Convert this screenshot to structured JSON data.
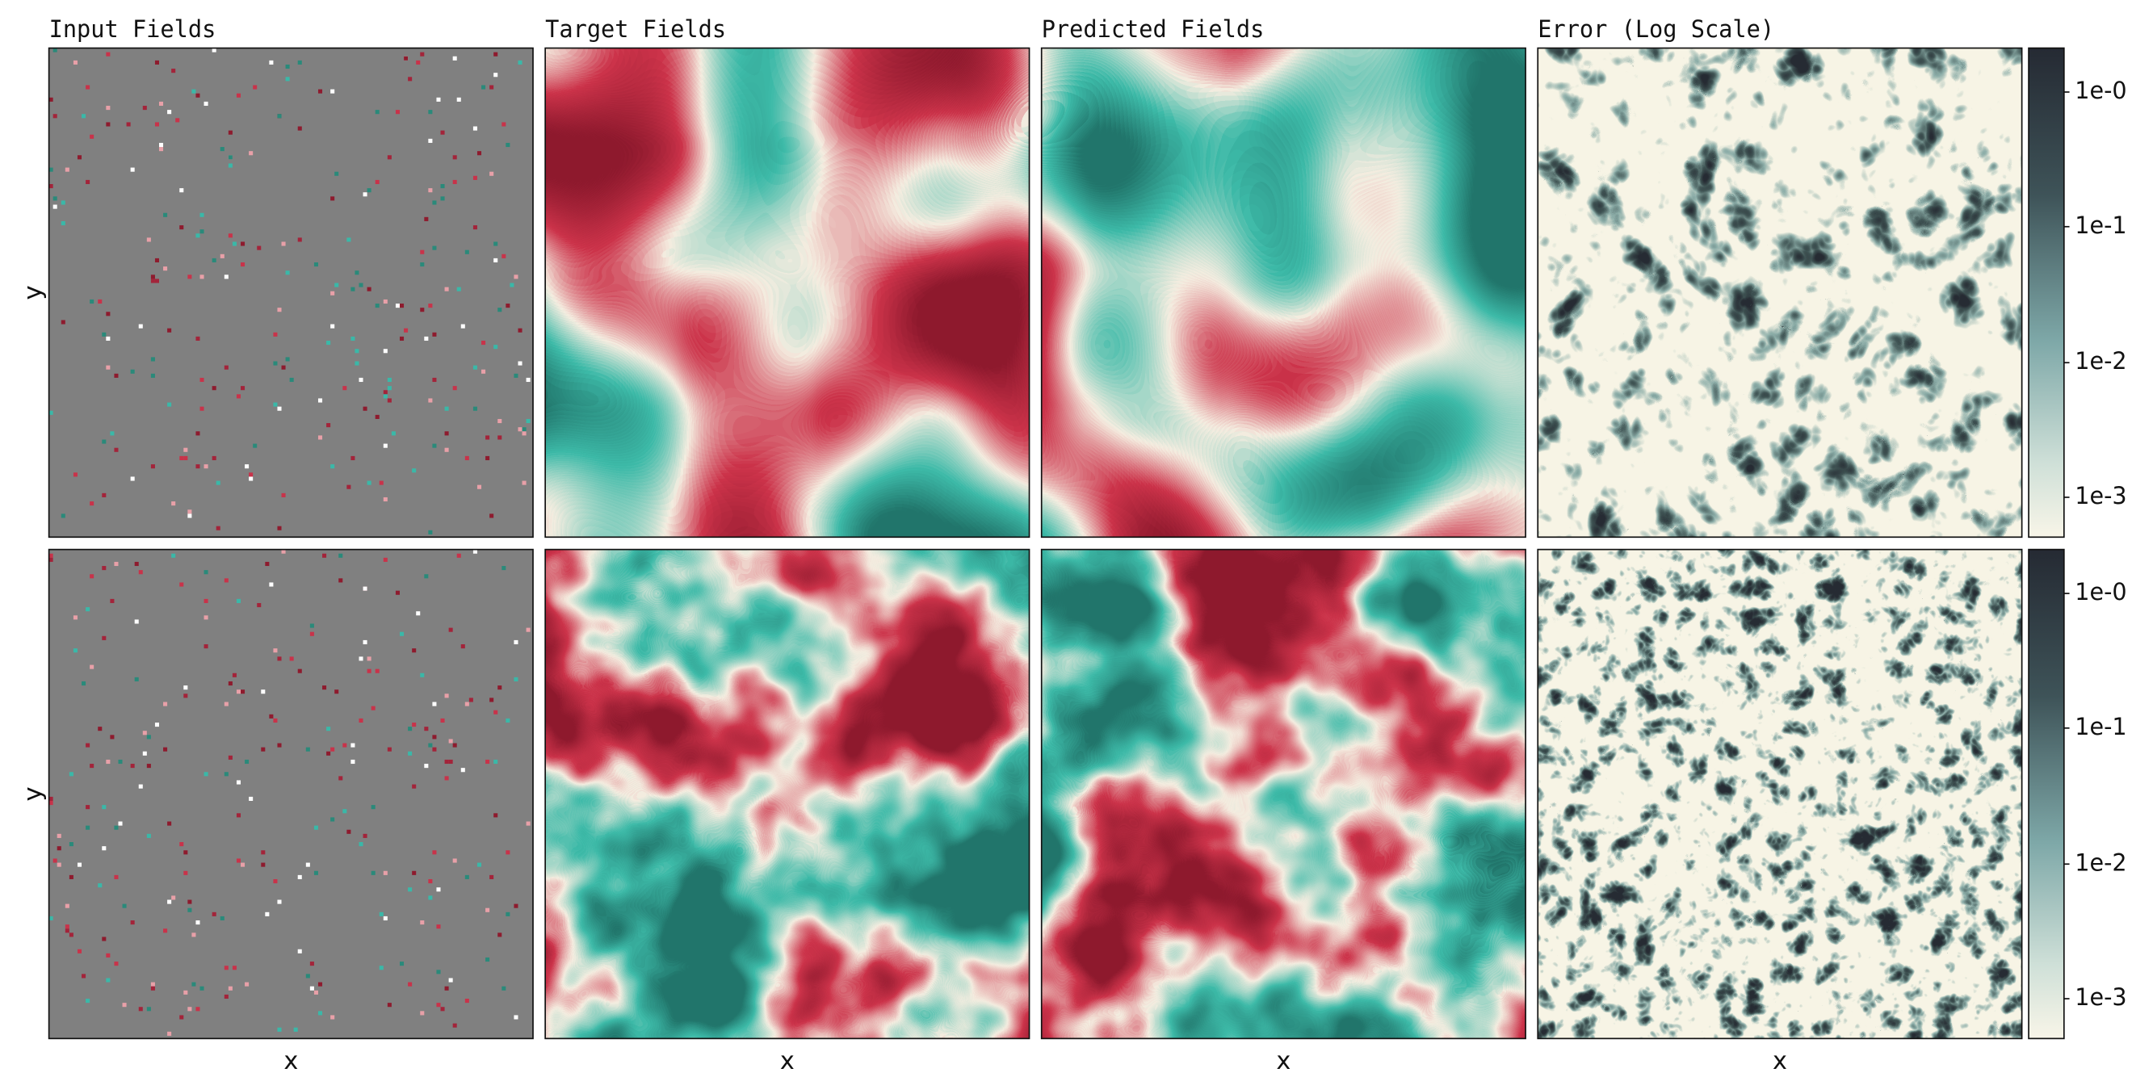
{
  "columns": [
    "Input Fields",
    "Target Fields",
    "Predicted Fields",
    "Error (Log Scale)"
  ],
  "rows": [
    {
      "y_label": "y",
      "colorbar_ticks": [
        "1e-0",
        "1e-1",
        "1e-2",
        "1e-3"
      ]
    },
    {
      "y_label": "y",
      "colorbar_ticks": [
        "1e-0",
        "1e-1",
        "1e-2",
        "1e-3"
      ]
    }
  ],
  "x_labels": [
    "x",
    "x",
    "x",
    "x"
  ]
}
